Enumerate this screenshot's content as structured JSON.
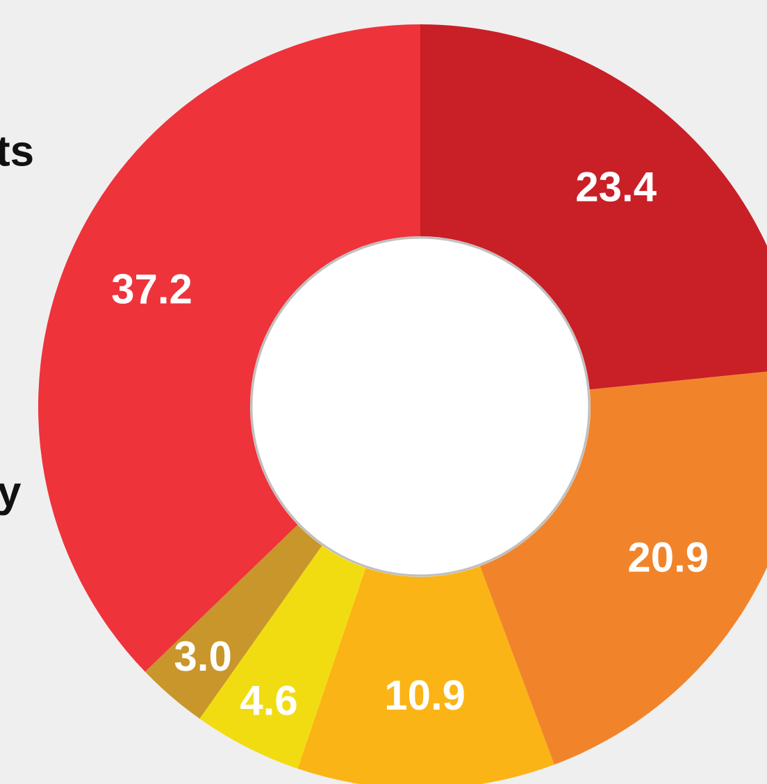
{
  "chart_data": {
    "type": "donut",
    "annotations": [
      "ts",
      "y"
    ],
    "values": [
      23.4,
      20.9,
      10.9,
      4.6,
      3.0,
      37.2
    ],
    "value_labels": [
      "23.4",
      "20.9",
      "10.9",
      "4.6",
      "3.0",
      "37.2"
    ],
    "colors": [
      "#c91f27",
      "#f1842b",
      "#fbb416",
      "#f1dc12",
      "#c9962b",
      "#ee333b"
    ]
  }
}
